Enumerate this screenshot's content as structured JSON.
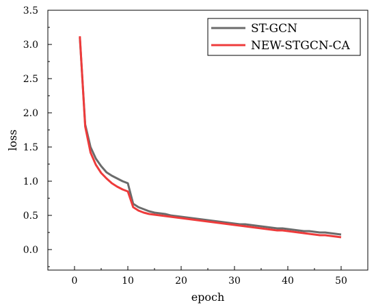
{
  "chart_data": {
    "type": "line",
    "title": "",
    "xlabel": "epoch",
    "ylabel": "loss",
    "xlim": [
      -5,
      55
    ],
    "ylim": [
      -0.3,
      3.5
    ],
    "xticks": [
      0,
      10,
      20,
      30,
      40,
      50
    ],
    "yticks": [
      0.0,
      0.5,
      1.0,
      1.5,
      2.0,
      2.5,
      3.0,
      3.5
    ],
    "xtick_labels": [
      "0",
      "10",
      "20",
      "30",
      "40",
      "50"
    ],
    "ytick_labels": [
      "0.0",
      "0.5",
      "1.0",
      "1.5",
      "2.0",
      "2.5",
      "3.0",
      "3.5"
    ],
    "grid": false,
    "legend_position": "top-right",
    "x": [
      1,
      2,
      3,
      4,
      5,
      6,
      7,
      8,
      9,
      10,
      11,
      12,
      13,
      14,
      15,
      16,
      17,
      18,
      19,
      20,
      21,
      22,
      23,
      24,
      25,
      26,
      27,
      28,
      29,
      30,
      31,
      32,
      33,
      34,
      35,
      36,
      37,
      38,
      39,
      40,
      41,
      42,
      43,
      44,
      45,
      46,
      47,
      48,
      49,
      50
    ],
    "series": [
      {
        "name": "ST-GCN",
        "color": "#6b6b6b",
        "values": [
          3.1,
          1.83,
          1.5,
          1.33,
          1.22,
          1.13,
          1.08,
          1.04,
          1.0,
          0.97,
          0.67,
          0.62,
          0.59,
          0.56,
          0.54,
          0.53,
          0.52,
          0.5,
          0.49,
          0.48,
          0.47,
          0.46,
          0.45,
          0.44,
          0.43,
          0.42,
          0.41,
          0.4,
          0.39,
          0.38,
          0.37,
          0.37,
          0.36,
          0.35,
          0.34,
          0.33,
          0.32,
          0.31,
          0.31,
          0.3,
          0.29,
          0.28,
          0.27,
          0.27,
          0.26,
          0.25,
          0.25,
          0.24,
          0.23,
          0.22
        ]
      },
      {
        "name": "NEW-STGCN-CA",
        "color": "#ee3b3b",
        "values": [
          3.12,
          1.8,
          1.42,
          1.24,
          1.12,
          1.04,
          0.97,
          0.92,
          0.88,
          0.85,
          0.62,
          0.57,
          0.54,
          0.52,
          0.51,
          0.5,
          0.49,
          0.48,
          0.47,
          0.46,
          0.45,
          0.44,
          0.43,
          0.42,
          0.41,
          0.4,
          0.39,
          0.38,
          0.37,
          0.36,
          0.35,
          0.34,
          0.33,
          0.32,
          0.31,
          0.3,
          0.29,
          0.28,
          0.28,
          0.27,
          0.26,
          0.25,
          0.24,
          0.23,
          0.22,
          0.21,
          0.21,
          0.2,
          0.19,
          0.18
        ]
      }
    ]
  }
}
